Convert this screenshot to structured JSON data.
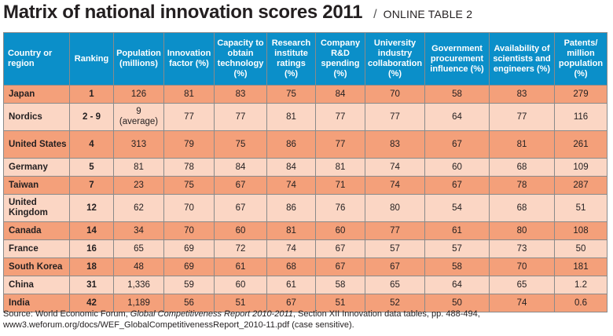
{
  "header": {
    "title": "Matrix of national innovation scores 2011",
    "separator": "/",
    "subtitle": "ONLINE TABLE 2"
  },
  "table": {
    "columns": [
      "Country or region",
      "Ranking",
      "Population (millions)",
      "Innovation factor (%)",
      "Capacity to obtain technology (%)",
      "Research institute ratings (%)",
      "Company R&D spending (%)",
      "University industry collaboration (%)",
      "Government procurement influence (%)",
      "Availability of scientists and engineers (%)",
      "Patents/ million population (%)"
    ],
    "rows": [
      {
        "country": "Japan",
        "ranking": "1",
        "population": "126",
        "innovation": "81",
        "capacity": "83",
        "research": "75",
        "rd": "84",
        "university": "70",
        "government": "58",
        "scientists": "83",
        "patents": "279"
      },
      {
        "country": "Nordics",
        "ranking": "2 - 9",
        "population": "9 (average)",
        "innovation": "77",
        "capacity": "77",
        "research": "81",
        "rd": "77",
        "university": "77",
        "government": "64",
        "scientists": "77",
        "patents": "116"
      },
      {
        "country": "United States",
        "ranking": "4",
        "population": "313",
        "innovation": "79",
        "capacity": "75",
        "research": "86",
        "rd": "77",
        "university": "83",
        "government": "67",
        "scientists": "81",
        "patents": "261"
      },
      {
        "country": "Germany",
        "ranking": "5",
        "population": "81",
        "innovation": "78",
        "capacity": "84",
        "research": "84",
        "rd": "81",
        "university": "74",
        "government": "60",
        "scientists": "68",
        "patents": "109"
      },
      {
        "country": "Taiwan",
        "ranking": "7",
        "population": "23",
        "innovation": "75",
        "capacity": "67",
        "research": "74",
        "rd": "71",
        "university": "74",
        "government": "67",
        "scientists": "78",
        "patents": "287"
      },
      {
        "country": "United Kingdom",
        "ranking": "12",
        "population": "62",
        "innovation": "70",
        "capacity": "67",
        "research": "86",
        "rd": "76",
        "university": "80",
        "government": "54",
        "scientists": "68",
        "patents": "51"
      },
      {
        "country": "Canada",
        "ranking": "14",
        "population": "34",
        "innovation": "70",
        "capacity": "60",
        "research": "81",
        "rd": "60",
        "university": "77",
        "government": "61",
        "scientists": "80",
        "patents": "108"
      },
      {
        "country": "France",
        "ranking": "16",
        "population": "65",
        "innovation": "69",
        "capacity": "72",
        "research": "74",
        "rd": "67",
        "university": "57",
        "government": "57",
        "scientists": "73",
        "patents": "50"
      },
      {
        "country": "South Korea",
        "ranking": "18",
        "population": "48",
        "innovation": "69",
        "capacity": "61",
        "research": "68",
        "rd": "67",
        "university": "67",
        "government": "58",
        "scientists": "70",
        "patents": "181"
      },
      {
        "country": "China",
        "ranking": "31",
        "population": "1,336",
        "innovation": "59",
        "capacity": "60",
        "research": "61",
        "rd": "58",
        "university": "65",
        "government": "64",
        "scientists": "65",
        "patents": "1.2"
      },
      {
        "country": "India",
        "ranking": "42",
        "population": "1,189",
        "innovation": "56",
        "capacity": "51",
        "research": "67",
        "rd": "51",
        "university": "52",
        "government": "50",
        "scientists": "74",
        "patents": "0.6"
      }
    ]
  },
  "source": {
    "prefix": "Source: World Economic Forum, ",
    "report": "Global Competitiveness Report 2010-2011",
    "suffix": ", Section XII Innovation data tables, pp. 488-494, www3.weforum.org/docs/WEF_GlobalCompetitivenessReport_2010-11.pdf (case sensitive)."
  },
  "colors": {
    "header_bg": "#0b8fc9",
    "row_dark": "#f4a07a",
    "row_light": "#fbd6c4"
  }
}
